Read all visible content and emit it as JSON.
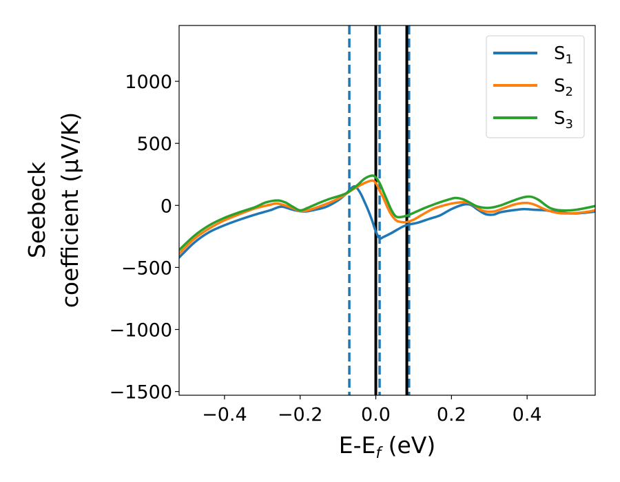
{
  "chart_data": {
    "type": "line",
    "xlabel": "E-E_f (eV)",
    "xlabel_parts": {
      "main": "E-E",
      "sub": "f",
      "rest": " (eV)"
    },
    "ylabel_lines": [
      "Seebeck",
      "coefficient  (μV/K)"
    ],
    "xlim": [
      -0.52,
      0.58
    ],
    "ylim": [
      -1530,
      1450
    ],
    "xticks": [
      -0.4,
      -0.2,
      0.0,
      0.2,
      0.4
    ],
    "xtick_labels": [
      "−0.4",
      "−0.2",
      "0.0",
      "0.2",
      "0.4"
    ],
    "yticks": [
      -1500,
      -1000,
      -500,
      0,
      500,
      1000
    ],
    "ytick_labels": [
      "−1500",
      "−1000",
      "−500",
      "0",
      "500",
      "1000"
    ],
    "grid": false,
    "legend_position": "top-right",
    "series": [
      {
        "name": "S1",
        "legend_main": "S",
        "legend_sub": "1",
        "color": "#1f77b4",
        "points": [
          [
            -0.52,
            -420
          ],
          [
            -0.48,
            -300
          ],
          [
            -0.44,
            -215
          ],
          [
            -0.4,
            -160
          ],
          [
            -0.36,
            -115
          ],
          [
            -0.32,
            -75
          ],
          [
            -0.28,
            -40
          ],
          [
            -0.25,
            -10
          ],
          [
            -0.22,
            -35
          ],
          [
            -0.19,
            -50
          ],
          [
            -0.16,
            -35
          ],
          [
            -0.13,
            -10
          ],
          [
            -0.1,
            40
          ],
          [
            -0.08,
            90
          ],
          [
            -0.06,
            150
          ],
          [
            -0.05,
            140
          ],
          [
            -0.04,
            95
          ],
          [
            -0.03,
            30
          ],
          [
            -0.02,
            -40
          ],
          [
            -0.01,
            -120
          ],
          [
            0.0,
            -210
          ],
          [
            0.01,
            -265
          ],
          [
            0.02,
            -255
          ],
          [
            0.04,
            -225
          ],
          [
            0.06,
            -190
          ],
          [
            0.08,
            -160
          ],
          [
            0.11,
            -140
          ],
          [
            0.14,
            -110
          ],
          [
            0.17,
            -80
          ],
          [
            0.2,
            -30
          ],
          [
            0.23,
            5
          ],
          [
            0.25,
            5
          ],
          [
            0.27,
            -35
          ],
          [
            0.29,
            -70
          ],
          [
            0.31,
            -75
          ],
          [
            0.33,
            -55
          ],
          [
            0.36,
            -40
          ],
          [
            0.39,
            -30
          ],
          [
            0.42,
            -35
          ],
          [
            0.45,
            -40
          ],
          [
            0.48,
            -55
          ],
          [
            0.52,
            -65
          ],
          [
            0.55,
            -60
          ],
          [
            0.58,
            -50
          ]
        ]
      },
      {
        "name": "S2",
        "legend_main": "S",
        "legend_sub": "2",
        "color": "#ff7f0e",
        "points": [
          [
            -0.52,
            -390
          ],
          [
            -0.48,
            -270
          ],
          [
            -0.44,
            -185
          ],
          [
            -0.4,
            -120
          ],
          [
            -0.36,
            -70
          ],
          [
            -0.32,
            -25
          ],
          [
            -0.28,
            5
          ],
          [
            -0.26,
            15
          ],
          [
            -0.23,
            -10
          ],
          [
            -0.2,
            -45
          ],
          [
            -0.18,
            -40
          ],
          [
            -0.15,
            -10
          ],
          [
            -0.12,
            25
          ],
          [
            -0.09,
            70
          ],
          [
            -0.06,
            130
          ],
          [
            -0.03,
            180
          ],
          [
            -0.01,
            200
          ],
          [
            0.0,
            180
          ],
          [
            0.01,
            120
          ],
          [
            0.02,
            60
          ],
          [
            0.03,
            -10
          ],
          [
            0.04,
            -70
          ],
          [
            0.05,
            -110
          ],
          [
            0.06,
            -130
          ],
          [
            0.08,
            -135
          ],
          [
            0.1,
            -115
          ],
          [
            0.12,
            -80
          ],
          [
            0.15,
            -30
          ],
          [
            0.18,
            0
          ],
          [
            0.21,
            20
          ],
          [
            0.24,
            25
          ],
          [
            0.26,
            0
          ],
          [
            0.28,
            -40
          ],
          [
            0.31,
            -50
          ],
          [
            0.34,
            -20
          ],
          [
            0.37,
            10
          ],
          [
            0.4,
            20
          ],
          [
            0.42,
            5
          ],
          [
            0.45,
            -35
          ],
          [
            0.48,
            -60
          ],
          [
            0.51,
            -65
          ],
          [
            0.55,
            -55
          ],
          [
            0.58,
            -40
          ]
        ]
      },
      {
        "name": "S3",
        "legend_main": "S",
        "legend_sub": "3",
        "color": "#2ca02c",
        "points": [
          [
            -0.52,
            -360
          ],
          [
            -0.48,
            -245
          ],
          [
            -0.44,
            -160
          ],
          [
            -0.4,
            -100
          ],
          [
            -0.36,
            -55
          ],
          [
            -0.32,
            -15
          ],
          [
            -0.29,
            25
          ],
          [
            -0.26,
            40
          ],
          [
            -0.24,
            25
          ],
          [
            -0.22,
            -10
          ],
          [
            -0.2,
            -40
          ],
          [
            -0.18,
            -20
          ],
          [
            -0.15,
            20
          ],
          [
            -0.12,
            55
          ],
          [
            -0.08,
            95
          ],
          [
            -0.05,
            160
          ],
          [
            -0.03,
            215
          ],
          [
            -0.01,
            240
          ],
          [
            0.0,
            225
          ],
          [
            0.01,
            180
          ],
          [
            0.02,
            110
          ],
          [
            0.03,
            40
          ],
          [
            0.04,
            -30
          ],
          [
            0.05,
            -80
          ],
          [
            0.06,
            -95
          ],
          [
            0.08,
            -85
          ],
          [
            0.1,
            -60
          ],
          [
            0.13,
            -20
          ],
          [
            0.16,
            15
          ],
          [
            0.19,
            45
          ],
          [
            0.21,
            60
          ],
          [
            0.23,
            50
          ],
          [
            0.25,
            20
          ],
          [
            0.27,
            -10
          ],
          [
            0.3,
            -20
          ],
          [
            0.33,
            0
          ],
          [
            0.36,
            35
          ],
          [
            0.39,
            65
          ],
          [
            0.41,
            70
          ],
          [
            0.43,
            45
          ],
          [
            0.46,
            -20
          ],
          [
            0.49,
            -40
          ],
          [
            0.53,
            -35
          ],
          [
            0.58,
            -5
          ]
        ]
      }
    ],
    "vlines": [
      {
        "x": -0.07,
        "color": "#1f77b4",
        "style": "dashed"
      },
      {
        "x": 0.01,
        "color": "#1f77b4",
        "style": "dashed"
      },
      {
        "x": 0.088,
        "color": "#1f77b4",
        "style": "dashed"
      },
      {
        "x": 0.0,
        "color": "#000000",
        "style": "solid"
      },
      {
        "x": 0.082,
        "color": "#000000",
        "style": "solid"
      }
    ]
  }
}
